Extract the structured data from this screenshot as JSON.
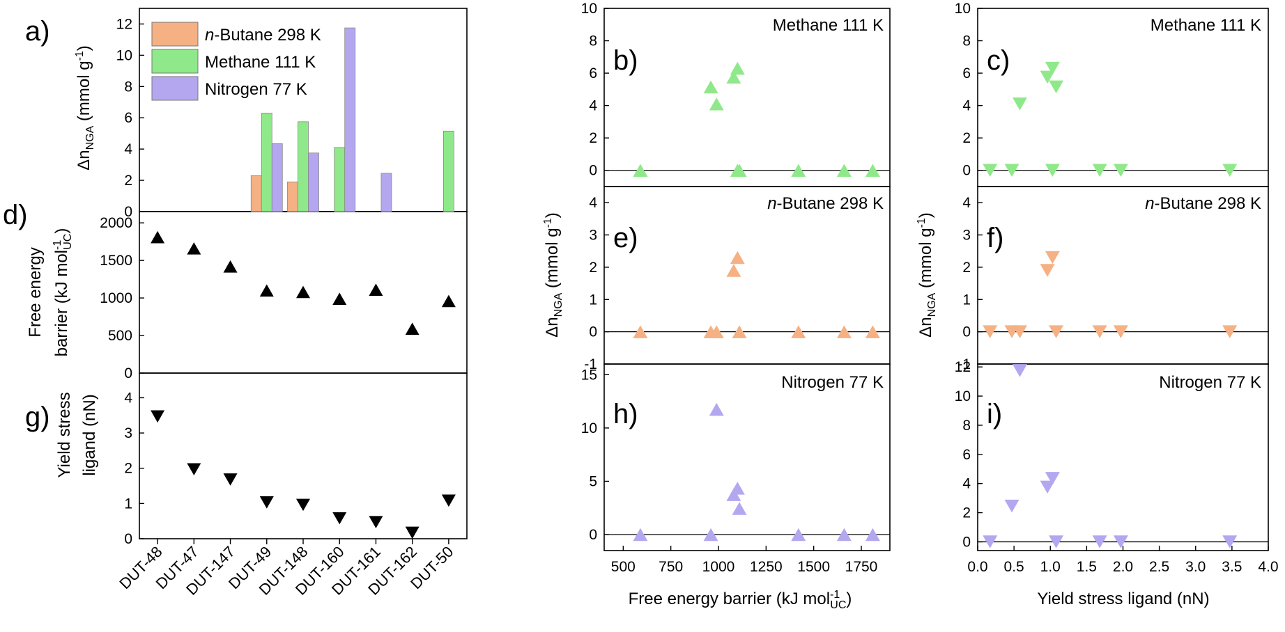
{
  "categories": [
    "DUT-48",
    "DUT-47",
    "DUT-147",
    "DUT-49",
    "DUT-148",
    "DUT-160",
    "DUT-161",
    "DUT-162",
    "DUT-50"
  ],
  "colors": {
    "butane": "#f5b183",
    "methane": "#8fe98a",
    "nitrogen": "#b4a7f0",
    "black": "#000000"
  },
  "labels": {
    "delta_n": "Δn",
    "nga_sub": "NGA",
    "mmol_unit": " (mmol g",
    "minus_one": "-1",
    "close_paren": ")",
    "fe_line1": "Free energy",
    "fe_line2": "barrier (kJ mol",
    "uc_sub": "UC",
    "ys_line1": "Yield stress",
    "ys_line2": "ligand (nN)",
    "x_fe": "Free energy barrier (kJ mol",
    "x_ys": "Yield stress ligand (nN)"
  },
  "chart_data": [
    {
      "panel": "a)",
      "type": "bar",
      "ylabel": "ΔnNGA (mmol g-1)",
      "ylim": [
        0,
        13
      ],
      "yticks": [
        "0",
        "2",
        "4",
        "6",
        "8",
        "10",
        "12"
      ],
      "ytick_values": [
        0,
        2,
        4,
        6,
        8,
        10,
        12
      ],
      "legend": [
        "n-Butane 298 K",
        "Methane 111 K",
        "Nitrogen 77 K"
      ],
      "legend_n": "n",
      "legend_butane_rest": "-Butane 298 K",
      "series": [
        {
          "name": "n-Butane 298 K",
          "color": "#f5b183",
          "values": [
            null,
            null,
            null,
            2.3,
            1.9,
            null,
            null,
            null,
            null
          ]
        },
        {
          "name": "Methane 111 K",
          "color": "#8fe98a",
          "values": [
            null,
            null,
            null,
            6.3,
            5.75,
            4.1,
            null,
            null,
            5.15
          ]
        },
        {
          "name": "Nitrogen 77 K",
          "color": "#b4a7f0",
          "values": [
            null,
            null,
            null,
            4.35,
            3.75,
            11.75,
            2.45,
            null,
            null
          ]
        }
      ]
    },
    {
      "panel": "d)",
      "type": "scatter",
      "ylabel": "Free energy barrier (kJ mol-1 UC)",
      "ylim": [
        0,
        2150
      ],
      "yticks": [
        "0",
        "500",
        "1000",
        "1500",
        "2000"
      ],
      "ytick_values": [
        0,
        500,
        1000,
        1500,
        2000
      ],
      "marker": "triangle-up",
      "values": [
        1810,
        1660,
        1420,
        1100,
        1080,
        990,
        1110,
        590,
        960
      ]
    },
    {
      "panel": "g)",
      "type": "scatter",
      "ylabel": "Yield stress ligand (nN)",
      "ylim": [
        0,
        4.7
      ],
      "yticks": [
        "0",
        "1",
        "2",
        "3",
        "4"
      ],
      "ytick_values": [
        0,
        1,
        2,
        3,
        4
      ],
      "marker": "triangle-down",
      "values": [
        3.47,
        1.97,
        1.68,
        1.03,
        0.96,
        0.58,
        0.47,
        0.17,
        1.08
      ],
      "categories_shown": [
        "DUT-48",
        "DUT-47",
        "DUT-147",
        "DUT-49",
        "DUT-148",
        "DUT-160",
        "DUT-161",
        "DUT-162",
        "DUT-50"
      ]
    },
    {
      "panel": "b)",
      "type": "scatter",
      "title": "Methane 111 K",
      "color": "#8fe98a",
      "marker": "triangle-up",
      "xlim": [
        400,
        1900
      ],
      "ylim": [
        -1,
        10
      ],
      "yticks": [
        "0",
        "2",
        "4",
        "6",
        "8",
        "10"
      ],
      "ytick_values": [
        0,
        2,
        4,
        6,
        8,
        10
      ],
      "x": [
        590,
        960,
        990,
        1080,
        1100,
        1100,
        1110,
        1420,
        1660,
        1810
      ],
      "y": [
        0,
        5.15,
        4.1,
        5.75,
        6.3,
        0,
        0,
        0,
        0,
        0
      ]
    },
    {
      "panel": "e)",
      "type": "scatter",
      "title": "n-Butane 298 K",
      "title_n": "n",
      "title_rest": "-Butane 298 K",
      "color": "#f5b183",
      "marker": "triangle-up",
      "xlim": [
        400,
        1900
      ],
      "ylim": [
        -1,
        4.5
      ],
      "yticks": [
        "-1",
        "0",
        "1",
        "2",
        "3",
        "4"
      ],
      "ytick_values": [
        -1,
        0,
        1,
        2,
        3,
        4
      ],
      "x": [
        590,
        960,
        990,
        1080,
        1100,
        1110,
        1420,
        1660,
        1810
      ],
      "y": [
        0,
        0,
        0,
        1.9,
        2.3,
        0,
        0,
        0,
        0
      ]
    },
    {
      "panel": "h)",
      "type": "scatter",
      "title": "Nitrogen 77 K",
      "color": "#b4a7f0",
      "marker": "triangle-up",
      "xlim": [
        400,
        1900
      ],
      "ylim": [
        -1.5,
        16
      ],
      "yticks": [
        "0",
        "5",
        "10",
        "15"
      ],
      "ytick_values": [
        0,
        5,
        10,
        15
      ],
      "xticks": [
        "500",
        "750",
        "1000",
        "1250",
        "1500",
        "1750"
      ],
      "xtick_values": [
        500,
        750,
        1000,
        1250,
        1500,
        1750
      ],
      "xlabel": "Free energy barrier (kJ mol-1 UC)",
      "x": [
        590,
        960,
        990,
        1080,
        1100,
        1110,
        1420,
        1660,
        1810
      ],
      "y": [
        0,
        0,
        11.75,
        3.75,
        4.35,
        2.45,
        0,
        0,
        0
      ]
    },
    {
      "panel": "c)",
      "type": "scatter",
      "title": "Methane 111 K",
      "color": "#8fe98a",
      "marker": "triangle-down",
      "xlim": [
        0,
        4
      ],
      "ylim": [
        -1,
        10
      ],
      "yticks": [
        "0",
        "2",
        "4",
        "6",
        "8",
        "10"
      ],
      "ytick_values": [
        0,
        2,
        4,
        6,
        8,
        10
      ],
      "x": [
        0.17,
        0.47,
        0.58,
        0.96,
        1.03,
        1.03,
        1.08,
        1.68,
        1.97,
        3.47
      ],
      "y": [
        0,
        0,
        4.1,
        5.75,
        6.3,
        0,
        5.15,
        0,
        0,
        0
      ]
    },
    {
      "panel": "f)",
      "type": "scatter",
      "title": "n-Butane 298 K",
      "title_n": "n",
      "title_rest": "-Butane 298 K",
      "color": "#f5b183",
      "marker": "triangle-down",
      "xlim": [
        0,
        4
      ],
      "ylim": [
        -1,
        4.5
      ],
      "yticks": [
        "-1",
        "0",
        "1",
        "2",
        "3",
        "4"
      ],
      "ytick_values": [
        -1,
        0,
        1,
        2,
        3,
        4
      ],
      "x": [
        0.17,
        0.47,
        0.58,
        0.96,
        1.03,
        1.08,
        1.68,
        1.97,
        3.47
      ],
      "y": [
        0,
        0,
        0,
        1.9,
        2.3,
        0,
        0,
        0,
        0
      ]
    },
    {
      "panel": "i)",
      "type": "scatter",
      "title": "Nitrogen 77 K",
      "color": "#b4a7f0",
      "marker": "triangle-down",
      "xlim": [
        0,
        4
      ],
      "ylim": [
        -0.6,
        12.2
      ],
      "yticks": [
        "0",
        "2",
        "4",
        "6",
        "8",
        "10",
        "12"
      ],
      "ytick_values": [
        0,
        2,
        4,
        6,
        8,
        10,
        12
      ],
      "xticks": [
        "0.0",
        "0.5",
        "1.0",
        "1.5",
        "2.0",
        "2.5",
        "3.0",
        "3.5",
        "4.0"
      ],
      "xtick_values": [
        0,
        0.5,
        1,
        1.5,
        2,
        2.5,
        3,
        3.5,
        4
      ],
      "xlabel": "Yield stress ligand (nN)",
      "x": [
        0.17,
        0.47,
        0.58,
        0.96,
        1.03,
        1.08,
        1.68,
        1.97,
        3.47
      ],
      "y": [
        0,
        2.45,
        11.75,
        3.75,
        4.35,
        0,
        0,
        0,
        0
      ]
    }
  ]
}
